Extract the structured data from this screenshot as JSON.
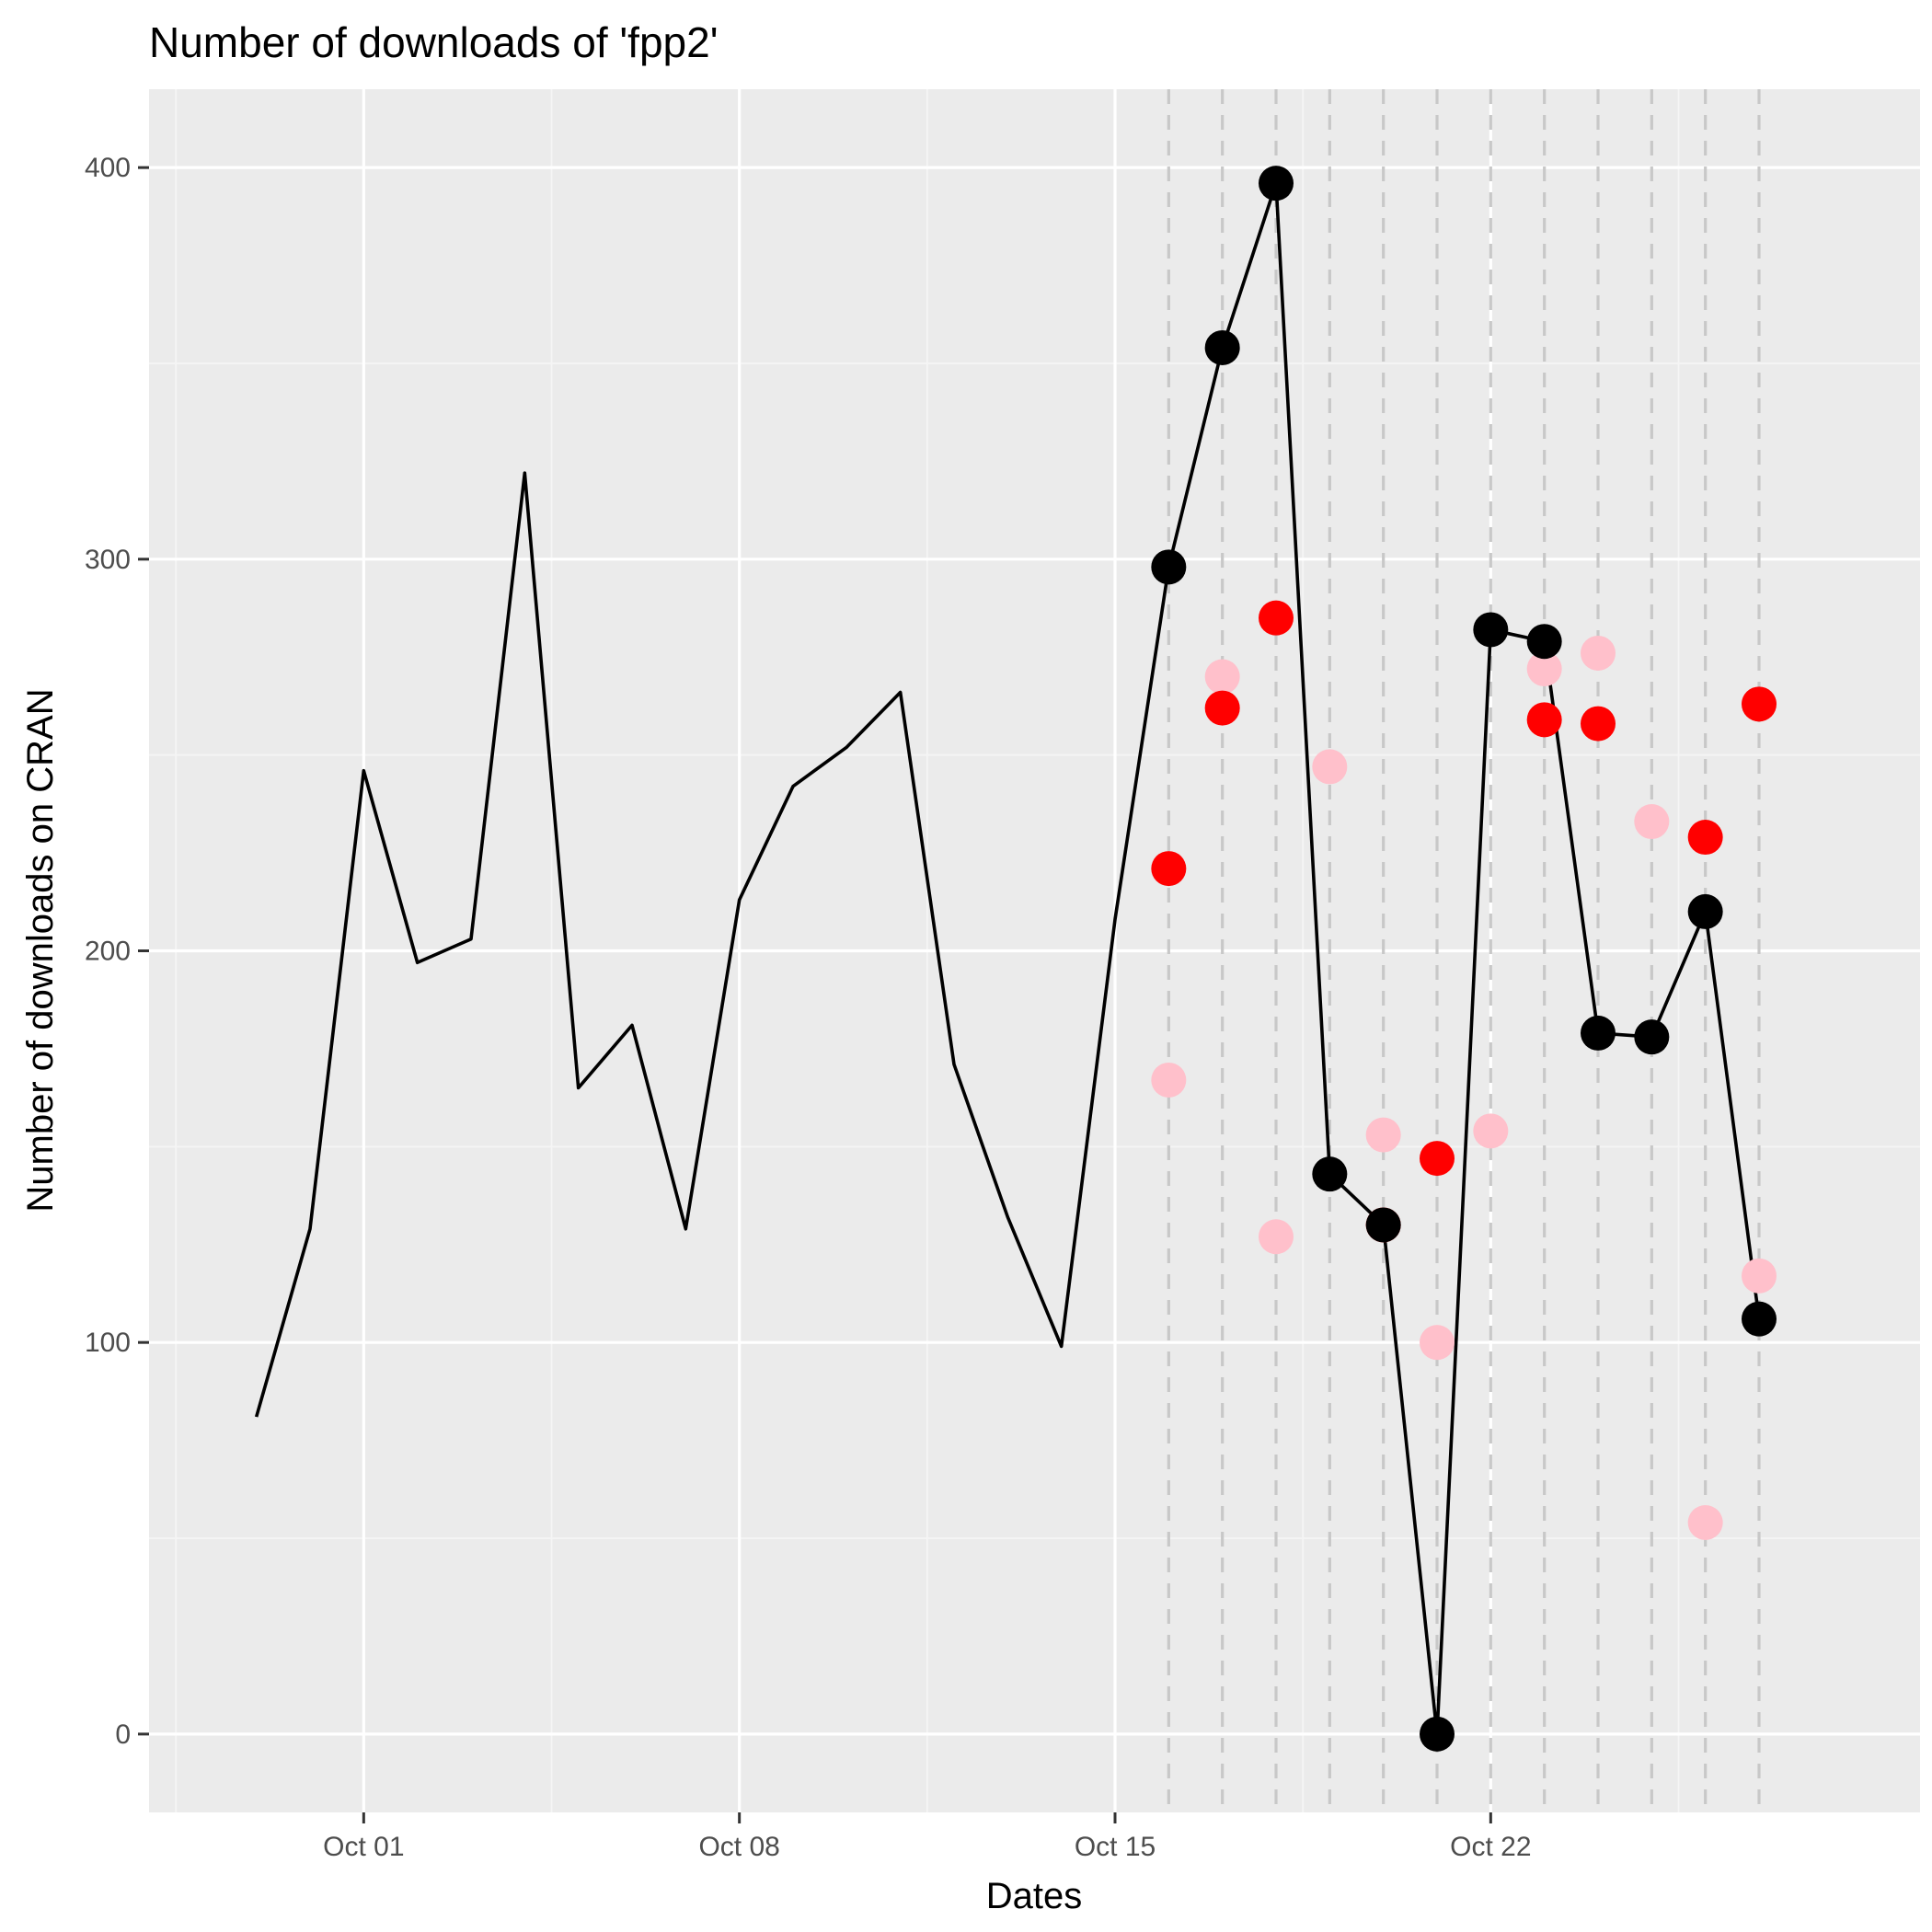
{
  "chart_data": {
    "type": "line",
    "title": "Number of downloads of 'fpp2'",
    "xlabel": "Dates",
    "ylabel": "Number of downloads on CRAN",
    "x_ticks": [
      {
        "date": "2017-10-01",
        "label": "Oct 01"
      },
      {
        "date": "2017-10-08",
        "label": "Oct 08"
      },
      {
        "date": "2017-10-15",
        "label": "Oct 15"
      },
      {
        "date": "2017-10-22",
        "label": "Oct 22"
      }
    ],
    "y_ticks": [
      0,
      100,
      200,
      300,
      400
    ],
    "xlim": [
      "2017-09-27",
      "2017-10-30"
    ],
    "ylim": [
      -20,
      420
    ],
    "grid": true,
    "series": [
      {
        "role": "observed",
        "color": "#000000",
        "points": [
          {
            "x": "2017-09-29",
            "y": 81
          },
          {
            "x": "2017-09-30",
            "y": 129
          },
          {
            "x": "2017-10-01",
            "y": 246
          },
          {
            "x": "2017-10-02",
            "y": 197
          },
          {
            "x": "2017-10-03",
            "y": 203
          },
          {
            "x": "2017-10-04",
            "y": 322
          },
          {
            "x": "2017-10-05",
            "y": 165
          },
          {
            "x": "2017-10-06",
            "y": 181
          },
          {
            "x": "2017-10-07",
            "y": 129
          },
          {
            "x": "2017-10-08",
            "y": 213
          },
          {
            "x": "2017-10-09",
            "y": 242
          },
          {
            "x": "2017-10-10",
            "y": 252
          },
          {
            "x": "2017-10-11",
            "y": 266
          },
          {
            "x": "2017-10-12",
            "y": 171
          },
          {
            "x": "2017-10-13",
            "y": 132
          },
          {
            "x": "2017-10-14",
            "y": 99
          },
          {
            "x": "2017-10-15",
            "y": 208
          },
          {
            "x": "2017-10-16",
            "y": 298
          },
          {
            "x": "2017-10-17",
            "y": 354
          },
          {
            "x": "2017-10-18",
            "y": 396
          },
          {
            "x": "2017-10-19",
            "y": 143
          },
          {
            "x": "2017-10-20",
            "y": 130
          },
          {
            "x": "2017-10-21",
            "y": 0
          },
          {
            "x": "2017-10-22",
            "y": 282
          },
          {
            "x": "2017-10-23",
            "y": 279
          },
          {
            "x": "2017-10-24",
            "y": 179
          },
          {
            "x": "2017-10-25",
            "y": 178
          },
          {
            "x": "2017-10-26",
            "y": 210
          },
          {
            "x": "2017-10-27",
            "y": 106
          }
        ]
      },
      {
        "role": "red-points",
        "color": "#ff0000",
        "points": [
          {
            "x": "2017-10-16",
            "y": 221
          },
          {
            "x": "2017-10-17",
            "y": 262
          },
          {
            "x": "2017-10-18",
            "y": 285
          },
          {
            "x": "2017-10-20",
            "y": 130
          },
          {
            "x": "2017-10-21",
            "y": 147
          },
          {
            "x": "2017-10-23",
            "y": 259
          },
          {
            "x": "2017-10-24",
            "y": 258
          },
          {
            "x": "2017-10-26",
            "y": 229
          },
          {
            "x": "2017-10-27",
            "y": 263
          }
        ]
      },
      {
        "role": "pink-points",
        "color": "#ffc0cb",
        "points": [
          {
            "x": "2017-10-16",
            "y": 167
          },
          {
            "x": "2017-10-17",
            "y": 270
          },
          {
            "x": "2017-10-18",
            "y": 127
          },
          {
            "x": "2017-10-19",
            "y": 247
          },
          {
            "x": "2017-10-20",
            "y": 153
          },
          {
            "x": "2017-10-21",
            "y": 100
          },
          {
            "x": "2017-10-22",
            "y": 154
          },
          {
            "x": "2017-10-23",
            "y": 272
          },
          {
            "x": "2017-10-24",
            "y": 276
          },
          {
            "x": "2017-10-25",
            "y": 233
          },
          {
            "x": "2017-10-26",
            "y": 54
          },
          {
            "x": "2017-10-27",
            "y": 117
          }
        ]
      }
    ],
    "highlighted_points_from": "2017-10-16",
    "vertical_dashed_lines": [
      "2017-10-16",
      "2017-10-17",
      "2017-10-18",
      "2017-10-19",
      "2017-10-20",
      "2017-10-21",
      "2017-10-22",
      "2017-10-23",
      "2017-10-24",
      "2017-10-25",
      "2017-10-26",
      "2017-10-27"
    ],
    "colors": {
      "panel_background": "#ebebeb",
      "grid_major": "#ffffff",
      "grid_minor": "#f5f5f5",
      "dashed_line": "#c8c8c8",
      "tick_text": "#4d4d4d"
    }
  }
}
